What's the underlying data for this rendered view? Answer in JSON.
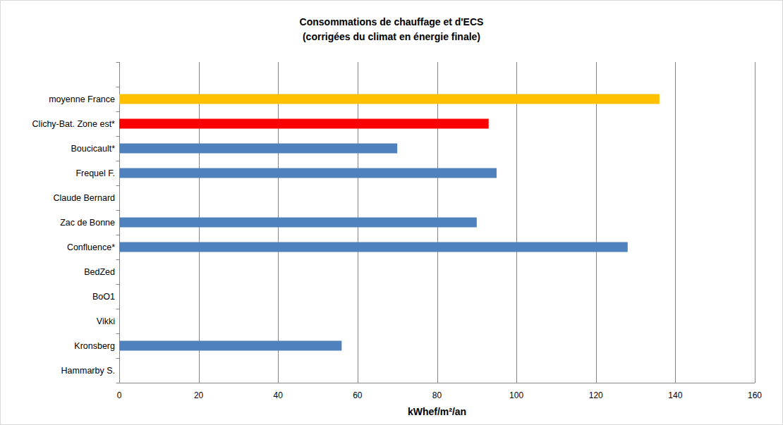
{
  "chart_data": {
    "type": "bar",
    "orientation": "horizontal",
    "title": "Consommations de chauffage et d'ECS",
    "subtitle": "(corrigées du climat en énergie finale)",
    "xlabel": "kWhef/m²/an",
    "categories": [
      null,
      "moyenne France",
      "Clichy-Bat. Zone est*",
      "Boucicault*",
      "Frequel F.",
      "Claude Bernard",
      "Zac de Bonne",
      "Confluence*",
      "BedZed",
      "BoO1",
      "Vikki",
      "Kronsberg",
      "Hammarby S."
    ],
    "values": [
      null,
      136,
      93,
      70,
      95,
      null,
      90,
      128,
      null,
      null,
      null,
      56,
      null
    ],
    "colors": [
      "#4f81bd",
      "#ffc000",
      "#ff0000",
      "#4f81bd",
      "#4f81bd",
      "#4f81bd",
      "#4f81bd",
      "#4f81bd",
      "#4f81bd",
      "#4f81bd",
      "#4f81bd",
      "#4f81bd",
      "#4f81bd"
    ],
    "xlim": [
      0,
      160
    ],
    "xticks": [
      0,
      20,
      40,
      60,
      80,
      100,
      120,
      140,
      160
    ],
    "grid": true
  }
}
